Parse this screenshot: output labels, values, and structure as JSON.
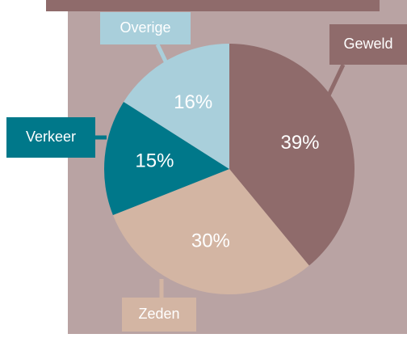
{
  "chart_data": {
    "type": "pie",
    "categories": [
      "Geweld",
      "Zeden",
      "Verkeer",
      "Overige"
    ],
    "values": [
      39,
      30,
      15,
      16
    ],
    "value_labels": [
      "39%",
      "30%",
      "15%",
      "16%"
    ],
    "colors": [
      "#8f6b6b",
      "#d3b5a3",
      "#00788a",
      "#a9cfdb"
    ]
  }
}
